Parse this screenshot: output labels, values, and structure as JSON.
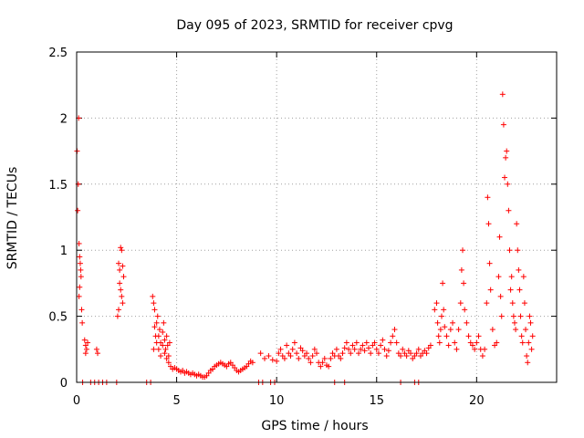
{
  "chart_data": {
    "type": "scatter",
    "title": "Day 095 of 2023, SRMTID for receiver cpvg",
    "xlabel": "GPS time / hours",
    "ylabel": "SRMTID / TECUs",
    "xlim": [
      0,
      24
    ],
    "ylim": [
      0,
      2.5
    ],
    "xticks": [
      0,
      5,
      10,
      15,
      20
    ],
    "yticks": [
      0,
      0.5,
      1,
      1.5,
      2,
      2.5
    ],
    "xtick_labels": [
      "0",
      "5",
      "10",
      "15",
      "20"
    ],
    "ytick_labels": [
      "0",
      "0.5",
      "1",
      "1.5",
      "2",
      "2.5"
    ],
    "grid": true,
    "marker": "plus",
    "color": "#ff0000",
    "series": [
      {
        "name": "SRMTID",
        "points": [
          [
            0.02,
            1.75
          ],
          [
            0.05,
            1.3
          ],
          [
            0.08,
            1.5
          ],
          [
            0.1,
            2.0
          ],
          [
            0.12,
            1.05
          ],
          [
            0.15,
            0.95
          ],
          [
            0.18,
            0.9
          ],
          [
            0.2,
            0.85
          ],
          [
            0.22,
            0.8
          ],
          [
            0.12,
            0.65
          ],
          [
            0.25,
            0.55
          ],
          [
            0.28,
            0.45
          ],
          [
            0.15,
            0.72
          ],
          [
            0.4,
            0.32
          ],
          [
            0.45,
            0.28
          ],
          [
            0.5,
            0.25
          ],
          [
            0.55,
            0.3
          ],
          [
            0.45,
            0.22
          ],
          [
            1.0,
            0.25
          ],
          [
            1.05,
            0.22
          ],
          [
            2.1,
            0.9
          ],
          [
            2.15,
            0.85
          ],
          [
            2.2,
            1.02
          ],
          [
            2.25,
            1.0
          ],
          [
            2.3,
            0.88
          ],
          [
            2.15,
            0.75
          ],
          [
            2.2,
            0.7
          ],
          [
            2.25,
            0.65
          ],
          [
            2.1,
            0.55
          ],
          [
            2.05,
            0.5
          ],
          [
            2.3,
            0.6
          ],
          [
            2.35,
            0.8
          ],
          [
            3.8,
            0.65
          ],
          [
            3.85,
            0.6
          ],
          [
            3.9,
            0.55
          ],
          [
            3.9,
            0.42
          ],
          [
            3.95,
            0.35
          ],
          [
            4.0,
            0.3
          ],
          [
            3.85,
            0.25
          ],
          [
            4.0,
            0.45
          ],
          [
            4.05,
            0.5
          ],
          [
            4.1,
            0.35
          ],
          [
            4.15,
            0.4
          ],
          [
            4.2,
            0.3
          ],
          [
            4.1,
            0.25
          ],
          [
            4.2,
            0.2
          ],
          [
            4.3,
            0.38
          ],
          [
            4.3,
            0.28
          ],
          [
            4.35,
            0.45
          ],
          [
            4.4,
            0.32
          ],
          [
            4.4,
            0.22
          ],
          [
            4.45,
            0.25
          ],
          [
            4.5,
            0.35
          ],
          [
            4.5,
            0.18
          ],
          [
            4.55,
            0.28
          ],
          [
            4.6,
            0.2
          ],
          [
            4.6,
            0.15
          ],
          [
            4.65,
            0.3
          ],
          [
            4.7,
            0.12
          ],
          [
            4.8,
            0.1
          ],
          [
            4.9,
            0.11
          ],
          [
            5.0,
            0.1
          ],
          [
            5.1,
            0.09
          ],
          [
            5.2,
            0.08
          ],
          [
            5.3,
            0.09
          ],
          [
            5.4,
            0.07
          ],
          [
            5.5,
            0.08
          ],
          [
            5.6,
            0.07
          ],
          [
            5.7,
            0.06
          ],
          [
            5.8,
            0.07
          ],
          [
            5.9,
            0.06
          ],
          [
            6.0,
            0.05
          ],
          [
            6.1,
            0.06
          ],
          [
            6.2,
            0.05
          ],
          [
            6.3,
            0.04
          ],
          [
            6.4,
            0.04
          ],
          [
            6.5,
            0.05
          ],
          [
            6.6,
            0.07
          ],
          [
            6.7,
            0.09
          ],
          [
            6.8,
            0.1
          ],
          [
            6.9,
            0.12
          ],
          [
            7.0,
            0.13
          ],
          [
            7.1,
            0.14
          ],
          [
            7.2,
            0.15
          ],
          [
            7.3,
            0.14
          ],
          [
            7.4,
            0.13
          ],
          [
            7.5,
            0.12
          ],
          [
            7.6,
            0.14
          ],
          [
            7.7,
            0.15
          ],
          [
            7.8,
            0.13
          ],
          [
            7.9,
            0.11
          ],
          [
            8.0,
            0.09
          ],
          [
            8.1,
            0.08
          ],
          [
            8.2,
            0.09
          ],
          [
            8.3,
            0.1
          ],
          [
            8.4,
            0.11
          ],
          [
            8.5,
            0.12
          ],
          [
            8.6,
            0.14
          ],
          [
            8.7,
            0.16
          ],
          [
            8.8,
            0.15
          ],
          [
            9.2,
            0.22
          ],
          [
            9.4,
            0.18
          ],
          [
            9.6,
            0.2
          ],
          [
            9.8,
            0.17
          ],
          [
            10.0,
            0.16
          ],
          [
            10.1,
            0.22
          ],
          [
            10.2,
            0.25
          ],
          [
            10.3,
            0.2
          ],
          [
            10.4,
            0.18
          ],
          [
            10.5,
            0.28
          ],
          [
            10.6,
            0.22
          ],
          [
            10.7,
            0.2
          ],
          [
            10.8,
            0.25
          ],
          [
            10.9,
            0.3
          ],
          [
            11.0,
            0.22
          ],
          [
            11.1,
            0.18
          ],
          [
            11.2,
            0.26
          ],
          [
            11.3,
            0.24
          ],
          [
            11.4,
            0.2
          ],
          [
            11.5,
            0.22
          ],
          [
            11.6,
            0.18
          ],
          [
            11.7,
            0.15
          ],
          [
            11.8,
            0.2
          ],
          [
            11.9,
            0.25
          ],
          [
            12.0,
            0.22
          ],
          [
            12.1,
            0.15
          ],
          [
            12.2,
            0.12
          ],
          [
            12.3,
            0.15
          ],
          [
            12.4,
            0.18
          ],
          [
            12.5,
            0.13
          ],
          [
            12.6,
            0.12
          ],
          [
            12.7,
            0.18
          ],
          [
            12.8,
            0.22
          ],
          [
            12.9,
            0.2
          ],
          [
            13.0,
            0.25
          ],
          [
            13.1,
            0.2
          ],
          [
            13.2,
            0.18
          ],
          [
            13.3,
            0.22
          ],
          [
            13.4,
            0.26
          ],
          [
            13.5,
            0.3
          ],
          [
            13.6,
            0.25
          ],
          [
            13.7,
            0.22
          ],
          [
            13.8,
            0.28
          ],
          [
            13.9,
            0.25
          ],
          [
            14.0,
            0.3
          ],
          [
            14.1,
            0.22
          ],
          [
            14.2,
            0.25
          ],
          [
            14.3,
            0.28
          ],
          [
            14.4,
            0.24
          ],
          [
            14.5,
            0.3
          ],
          [
            14.6,
            0.26
          ],
          [
            14.7,
            0.22
          ],
          [
            14.8,
            0.28
          ],
          [
            14.9,
            0.3
          ],
          [
            15.0,
            0.25
          ],
          [
            15.1,
            0.22
          ],
          [
            15.2,
            0.28
          ],
          [
            15.3,
            0.32
          ],
          [
            15.4,
            0.25
          ],
          [
            15.5,
            0.2
          ],
          [
            15.6,
            0.24
          ],
          [
            15.7,
            0.3
          ],
          [
            15.8,
            0.35
          ],
          [
            15.9,
            0.4
          ],
          [
            16.0,
            0.3
          ],
          [
            16.1,
            0.22
          ],
          [
            16.2,
            0.2
          ],
          [
            16.3,
            0.25
          ],
          [
            16.4,
            0.22
          ],
          [
            16.5,
            0.2
          ],
          [
            16.6,
            0.24
          ],
          [
            16.7,
            0.22
          ],
          [
            16.8,
            0.18
          ],
          [
            16.9,
            0.2
          ],
          [
            17.0,
            0.22
          ],
          [
            17.1,
            0.25
          ],
          [
            17.2,
            0.2
          ],
          [
            17.3,
            0.22
          ],
          [
            17.4,
            0.24
          ],
          [
            17.5,
            0.22
          ],
          [
            17.6,
            0.26
          ],
          [
            17.7,
            0.28
          ],
          [
            17.9,
            0.55
          ],
          [
            18.0,
            0.6
          ],
          [
            18.05,
            0.45
          ],
          [
            18.1,
            0.35
          ],
          [
            18.15,
            0.3
          ],
          [
            18.2,
            0.4
          ],
          [
            18.25,
            0.5
          ],
          [
            18.3,
            0.75
          ],
          [
            18.35,
            0.55
          ],
          [
            18.4,
            0.42
          ],
          [
            18.5,
            0.35
          ],
          [
            18.6,
            0.28
          ],
          [
            18.7,
            0.4
          ],
          [
            18.8,
            0.45
          ],
          [
            18.9,
            0.3
          ],
          [
            19.0,
            0.25
          ],
          [
            19.1,
            0.4
          ],
          [
            19.2,
            0.6
          ],
          [
            19.25,
            0.85
          ],
          [
            19.3,
            1.0
          ],
          [
            19.35,
            0.75
          ],
          [
            19.4,
            0.55
          ],
          [
            19.5,
            0.45
          ],
          [
            19.6,
            0.35
          ],
          [
            19.7,
            0.3
          ],
          [
            19.8,
            0.28
          ],
          [
            19.9,
            0.25
          ],
          [
            20.0,
            0.3
          ],
          [
            20.1,
            0.35
          ],
          [
            20.2,
            0.25
          ],
          [
            20.3,
            0.2
          ],
          [
            20.4,
            0.25
          ],
          [
            20.5,
            0.6
          ],
          [
            20.55,
            1.4
          ],
          [
            20.6,
            1.2
          ],
          [
            20.65,
            0.9
          ],
          [
            20.7,
            0.7
          ],
          [
            20.8,
            0.4
          ],
          [
            20.9,
            0.28
          ],
          [
            21.0,
            0.3
          ],
          [
            21.1,
            0.8
          ],
          [
            21.15,
            1.1
          ],
          [
            21.2,
            0.65
          ],
          [
            21.25,
            0.5
          ],
          [
            21.3,
            2.18
          ],
          [
            21.35,
            1.95
          ],
          [
            21.4,
            1.55
          ],
          [
            21.45,
            1.7
          ],
          [
            21.5,
            1.75
          ],
          [
            21.55,
            1.5
          ],
          [
            21.6,
            1.3
          ],
          [
            21.65,
            1.0
          ],
          [
            21.7,
            0.7
          ],
          [
            21.75,
            0.8
          ],
          [
            21.8,
            0.6
          ],
          [
            21.85,
            0.5
          ],
          [
            21.9,
            0.45
          ],
          [
            21.95,
            0.4
          ],
          [
            22.0,
            1.2
          ],
          [
            22.05,
            1.0
          ],
          [
            22.1,
            0.85
          ],
          [
            22.15,
            0.7
          ],
          [
            22.2,
            0.5
          ],
          [
            22.25,
            0.35
          ],
          [
            22.3,
            0.3
          ],
          [
            22.35,
            0.8
          ],
          [
            22.4,
            0.6
          ],
          [
            22.45,
            0.4
          ],
          [
            22.5,
            0.2
          ],
          [
            22.55,
            0.15
          ],
          [
            22.6,
            0.3
          ],
          [
            22.65,
            0.5
          ],
          [
            22.7,
            0.45
          ],
          [
            22.75,
            0.25
          ],
          [
            22.8,
            0.35
          ],
          [
            0.3,
            0.0
          ],
          [
            0.7,
            0.0
          ],
          [
            0.9,
            0.0
          ],
          [
            1.1,
            0.0
          ],
          [
            1.3,
            0.0
          ],
          [
            1.5,
            0.0
          ],
          [
            2.0,
            0.0
          ],
          [
            3.5,
            0.0
          ],
          [
            3.7,
            0.0
          ],
          [
            9.1,
            0.0
          ],
          [
            9.3,
            0.0
          ],
          [
            9.7,
            0.0
          ],
          [
            9.9,
            0.0
          ],
          [
            12.9,
            0.0
          ],
          [
            13.4,
            0.0
          ],
          [
            16.2,
            0.0
          ],
          [
            16.9,
            0.0
          ],
          [
            17.1,
            0.0
          ]
        ]
      }
    ]
  }
}
